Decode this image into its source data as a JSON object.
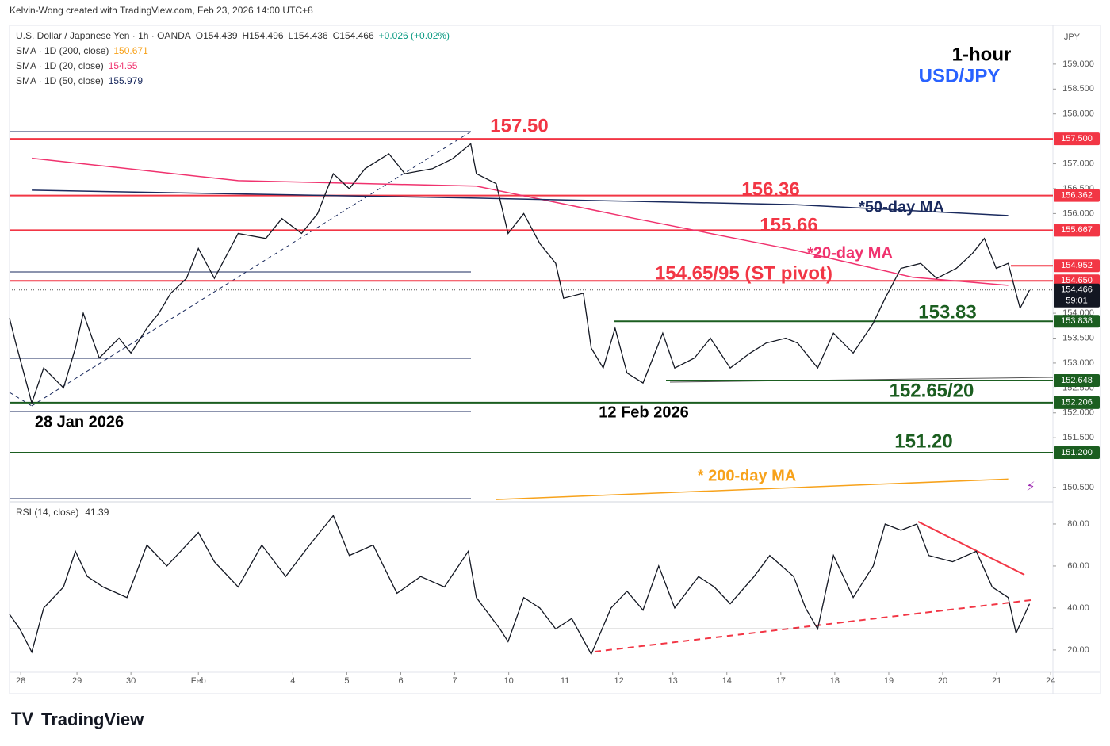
{
  "header": {
    "credit": "Kelvin-Wong created with TradingView.com, Feb 23, 2026 14:00 UTC+8",
    "brand": "TradingView"
  },
  "chart_data": [
    {
      "type": "line",
      "title": "1-hour",
      "subtitle": "USD/JPY",
      "currency": "JPY",
      "color": "#131722",
      "legend": {
        "symbol": "U.S. Dollar / Japanese Yen · 1h · OANDA",
        "open": "O154.439",
        "high": "H154.496",
        "low": "L154.436",
        "close": "C154.466",
        "change": "+0.026 (+0.02%)"
      },
      "x": [
        0,
        2.8,
        9.9,
        15.2,
        24,
        29.3,
        32.8,
        39.9,
        48.7,
        54,
        61.1,
        66.4,
        71.7,
        78.7,
        84,
        91.1,
        101.7,
        114,
        121.1,
        129.9,
        137,
        144,
        151.1,
        158.1,
        168.7,
        175.8,
        188.1,
        197,
        205.1,
        207.6,
        216.4,
        221.7,
        228.7,
        235.8,
        242.9,
        246.4,
        255.2,
        258.7,
        264,
        269.3,
        274.6,
        281.7,
        290.5,
        295.8,
        304.6,
        311.7,
        320.5,
        329.3,
        336.4,
        345.2,
        350.5,
        359.4,
        366.4,
        375.2,
        384.1,
        389.4,
        396.4,
        405.2,
        412.3,
        421.1,
        428.2,
        433.5,
        438.8,
        444.1,
        447.6,
        449.4,
        453.6
      ],
      "values": [
        153.9,
        153.4,
        152.2,
        152.9,
        152.5,
        153.3,
        154.0,
        153.1,
        153.5,
        153.2,
        153.7,
        154.0,
        154.4,
        154.7,
        155.3,
        154.7,
        155.6,
        155.5,
        155.9,
        155.6,
        156.0,
        156.8,
        156.5,
        156.9,
        157.2,
        156.8,
        156.9,
        157.1,
        157.4,
        156.8,
        156.6,
        155.6,
        156.0,
        155.4,
        155.0,
        154.3,
        154.4,
        153.3,
        152.9,
        153.7,
        152.8,
        152.6,
        153.6,
        152.9,
        153.1,
        153.5,
        152.9,
        153.2,
        153.4,
        153.5,
        153.4,
        152.9,
        153.6,
        153.2,
        153.8,
        154.3,
        154.9,
        155.0,
        154.7,
        154.9,
        155.2,
        155.5,
        154.9,
        155.0,
        154.4,
        154.1,
        154.466
      ],
      "xlim": [
        0,
        464
      ],
      "ylim": [
        150.23,
        159.73
      ],
      "yticks": [
        {
          "value": 159,
          "label": "159.000"
        },
        {
          "value": 158.5,
          "label": "158.500"
        },
        {
          "value": 158,
          "label": "158.000"
        },
        {
          "value": 157,
          "label": "157.000"
        },
        {
          "value": 156.5,
          "label": "156.500"
        },
        {
          "value": 156,
          "label": "156.000"
        },
        {
          "value": 154,
          "label": "154.000"
        },
        {
          "value": 153.5,
          "label": "153.500"
        },
        {
          "value": 153,
          "label": "153.000"
        },
        {
          "value": 152.5,
          "label": "152.500"
        },
        {
          "value": 152,
          "label": "152.000"
        },
        {
          "value": 151.5,
          "label": "151.500"
        },
        {
          "value": 150.5,
          "label": "150.500"
        }
      ],
      "mas": [
        {
          "name": "SMA · 1D (200, close)",
          "last": 150.671,
          "color": "#f7a21b",
          "x": [
            216.4,
            444.1
          ],
          "values": [
            150.26,
            150.67
          ]
        },
        {
          "name": "SMA · 1D (20, close)",
          "last": 154.55,
          "color": "#f0326e",
          "x": [
            9.9,
            101.7,
            207.6,
            278.2,
            348.8,
            401.7,
            444.1
          ],
          "values": [
            157.11,
            156.66,
            156.55,
            155.9,
            155.27,
            154.72,
            154.56
          ]
        },
        {
          "name": "SMA · 1D (50, close)",
          "last": 155.979,
          "color": "#1a2a5e",
          "x": [
            9.9,
            207.6,
            348.8,
            444.1
          ],
          "values": [
            156.47,
            156.31,
            156.18,
            155.96
          ]
        }
      ],
      "levels": [
        {
          "value": 157.5,
          "label": "157.500",
          "color": "#f23645"
        },
        {
          "value": 156.362,
          "label": "156.362",
          "color": "#f23645"
        },
        {
          "value": 155.667,
          "label": "155.667",
          "color": "#f23645"
        },
        {
          "value": 154.952,
          "label": "154.952",
          "color": "#f23645"
        },
        {
          "value": 154.65,
          "label": "154.650",
          "color": "#f23645"
        },
        {
          "value": 153.838,
          "label": "153.838",
          "color": "#1b5e20"
        },
        {
          "value": 152.648,
          "label": "152.648",
          "color": "#1b5e20"
        },
        {
          "value": 152.206,
          "label": "152.206",
          "color": "#1b5e20"
        },
        {
          "value": 151.2,
          "label": "151.200",
          "color": "#1b5e20"
        }
      ],
      "current": {
        "value": 154.466,
        "label": "154.466",
        "countdown": "59:01"
      },
      "annotations": [
        {
          "text": "157.50",
          "color": "#f23645"
        },
        {
          "text": "156.36",
          "color": "#f23645"
        },
        {
          "text": "155.66",
          "color": "#f23645"
        },
        {
          "text": "*20-day MA",
          "color": "#f0326e"
        },
        {
          "text": "154.65/95 (ST pivot)",
          "color": "#f23645"
        },
        {
          "text": "*50-day MA",
          "color": "#1a2a5e"
        },
        {
          "text": "153.83",
          "color": "#1b5e20"
        },
        {
          "text": "28 Jan 2026",
          "color": "#000000"
        },
        {
          "text": "12 Feb 2026",
          "color": "#000000"
        },
        {
          "text": "152.65/20",
          "color": "#1b5e20"
        },
        {
          "text": "151.20",
          "color": "#1b5e20"
        },
        {
          "text": "* 200-day MA",
          "color": "#f7a21b"
        }
      ]
    },
    {
      "type": "line",
      "name": "RSI (14, close)",
      "last": 41.39,
      "color": "#131722",
      "x": [
        0,
        4.6,
        9.9,
        15.2,
        24,
        29.3,
        34.6,
        41.6,
        52.2,
        61.1,
        70,
        84,
        91.1,
        101.7,
        112.2,
        122.8,
        133.4,
        144,
        151.1,
        161.7,
        172.3,
        182.8,
        193.4,
        204,
        207.6,
        218.1,
        221.7,
        228.7,
        235.8,
        242.9,
        250,
        258.7,
        267.5,
        274.6,
        281.7,
        288.7,
        295.8,
        306.4,
        313.4,
        320.5,
        331.1,
        338.1,
        348.7,
        354,
        359.4,
        366.4,
        375.2,
        384.1,
        389.4,
        396.4,
        403.5,
        408.8,
        419.4,
        429.9,
        437,
        444.1,
        447.6,
        453.6
      ],
      "values": [
        37,
        30,
        19,
        40,
        50,
        67,
        55,
        50,
        45,
        70,
        60,
        76,
        62,
        50,
        70,
        55,
        70,
        84,
        65,
        70,
        47,
        55,
        50,
        67,
        45,
        30,
        24,
        45,
        40,
        30,
        35,
        18,
        40,
        48,
        39,
        60,
        40,
        55,
        50,
        42,
        55,
        65,
        55,
        40,
        30,
        65,
        45,
        60,
        80,
        77,
        80,
        65,
        62,
        67,
        50,
        45,
        28,
        42
      ],
      "xlim": [
        0,
        464
      ],
      "ylim": [
        9.4,
        89.8
      ],
      "yticks": [
        {
          "value": 80,
          "label": "80.00"
        },
        {
          "value": 60,
          "label": "60.00"
        },
        {
          "value": 40,
          "label": "40.00"
        },
        {
          "value": 20,
          "label": "20.00"
        }
      ],
      "bands": [
        70,
        50,
        30
      ],
      "xticks": [
        {
          "value": 5,
          "label": "28"
        },
        {
          "value": 30,
          "label": "29"
        },
        {
          "value": 54,
          "label": "30"
        },
        {
          "value": 84,
          "label": "Feb"
        },
        {
          "value": 126,
          "label": "4"
        },
        {
          "value": 150,
          "label": "5"
        },
        {
          "value": 174,
          "label": "6"
        },
        {
          "value": 198,
          "label": "7"
        },
        {
          "value": 222,
          "label": "10"
        },
        {
          "value": 247,
          "label": "11"
        },
        {
          "value": 271,
          "label": "12"
        },
        {
          "value": 295,
          "label": "13"
        },
        {
          "value": 319,
          "label": "14"
        },
        {
          "value": 343,
          "label": "17"
        },
        {
          "value": 367,
          "label": "18"
        },
        {
          "value": 391,
          "label": "19"
        },
        {
          "value": 415,
          "label": "20"
        },
        {
          "value": 439,
          "label": "21"
        },
        {
          "value": 463,
          "label": "24"
        }
      ]
    }
  ]
}
